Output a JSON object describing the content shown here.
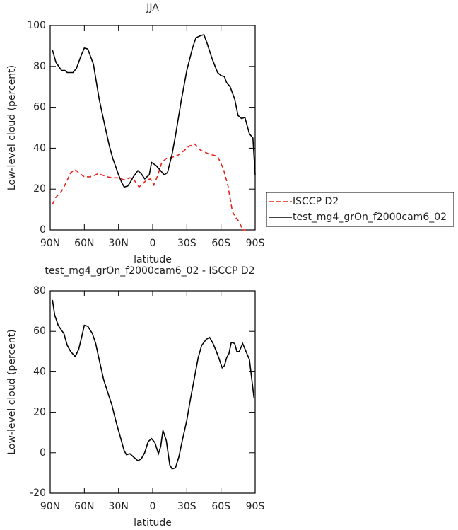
{
  "chart_data": [
    {
      "type": "line",
      "title": "JJA",
      "x_label": "latitude",
      "y_label": "Low-level cloud (percent)",
      "xlim": [
        90,
        -90
      ],
      "xticks": [
        {
          "value": 90,
          "label": "90N"
        },
        {
          "value": 60,
          "label": "60N"
        },
        {
          "value": 30,
          "label": "30N"
        },
        0,
        {
          "value": -30,
          "label": "30S"
        },
        {
          "value": -60,
          "label": "60S"
        },
        {
          "value": -90,
          "label": "90S"
        }
      ],
      "ylim": [
        0,
        100
      ],
      "yticks": [
        0,
        20,
        40,
        60,
        80,
        100
      ],
      "legend": "outside-right",
      "series": [
        {
          "name": "ISCCP D2",
          "color": "#e8201a",
          "line_style": "dashed",
          "x": [
            88,
            85,
            80,
            77,
            72,
            68,
            65,
            60,
            55,
            52,
            48,
            45,
            40,
            35,
            30,
            25,
            20,
            17,
            12,
            8,
            5,
            2,
            -1,
            -4,
            -8,
            -12,
            -17,
            -22,
            -27,
            -32,
            -37,
            -42,
            -46,
            -50,
            -54,
            -57,
            -62,
            -66,
            -70,
            -73,
            -76,
            -79,
            -82
          ],
          "values": [
            12.5,
            16,
            19,
            22,
            28,
            29.5,
            28,
            26,
            26,
            26.5,
            27.5,
            27,
            26,
            25.5,
            25.5,
            24.5,
            25.5,
            25,
            21,
            23,
            24.5,
            25,
            22,
            26,
            33,
            35,
            35.5,
            36.5,
            38.5,
            41,
            42,
            39,
            38,
            37,
            36.5,
            36,
            30,
            22,
            9,
            6,
            4,
            0,
            0
          ]
        },
        {
          "name": "test_mg4_grOn_f2000cam6_02",
          "color": "#000000",
          "line_style": "solid",
          "x": [
            88,
            85,
            80,
            77,
            75,
            70,
            67,
            63,
            60,
            57,
            52,
            47,
            42,
            38,
            35,
            30,
            27,
            25,
            22,
            20,
            17,
            13,
            10,
            7,
            3,
            1,
            -3,
            -7,
            -10,
            -13,
            -17,
            -20,
            -25,
            -30,
            -35,
            -38,
            -42,
            -45,
            -48,
            -52,
            -57,
            -60,
            -63,
            -65,
            -68,
            -72,
            -75,
            -78,
            -81,
            -85,
            -88,
            -90
          ],
          "values": [
            88,
            82,
            78,
            78,
            77,
            77,
            79,
            85,
            89,
            88.5,
            81,
            64,
            51,
            41,
            35,
            27,
            23,
            21,
            21.5,
            23,
            26,
            29,
            27.5,
            25,
            27,
            33,
            31.5,
            29,
            27,
            28,
            37,
            46,
            63,
            78,
            89,
            94,
            95,
            95.5,
            91,
            84,
            77,
            75.5,
            75,
            72,
            70,
            64,
            56,
            54.5,
            55,
            47,
            45,
            27
          ]
        }
      ]
    },
    {
      "type": "line",
      "title": "test_mg4_grOn_f2000cam6_02 - ISCCP D2",
      "x_label": "latitude",
      "y_label": "Low-level cloud (percent)",
      "xlim": [
        90,
        -90
      ],
      "xticks": [
        {
          "value": 90,
          "label": "90N"
        },
        {
          "value": 60,
          "label": "60N"
        },
        {
          "value": 30,
          "label": "30N"
        },
        0,
        {
          "value": -30,
          "label": "30S"
        },
        {
          "value": -60,
          "label": "60S"
        },
        {
          "value": -90,
          "label": "90S"
        }
      ],
      "ylim": [
        -20,
        80
      ],
      "yticks": [
        -20,
        0,
        20,
        40,
        60,
        80
      ],
      "color": "#000000",
      "x": [
        88,
        86,
        83,
        80,
        78,
        75,
        72,
        68,
        65,
        62,
        60,
        57,
        53,
        50,
        47,
        43,
        39,
        36,
        32,
        28,
        25,
        23,
        20,
        17,
        13,
        10,
        7,
        4,
        1,
        -2,
        -5,
        -7,
        -9,
        -12,
        -15,
        -17,
        -20,
        -23,
        -26,
        -30,
        -33,
        -37,
        -40,
        -43,
        -47,
        -50,
        -53,
        -56,
        -58,
        -61,
        -63,
        -65,
        -67,
        -69,
        -72,
        -74,
        -76,
        -79,
        -82,
        -85,
        -89
      ],
      "values": [
        75.5,
        68,
        63,
        60.5,
        59,
        53,
        50,
        47.5,
        51,
        58,
        63,
        62.5,
        59,
        54,
        46,
        36,
        29,
        24,
        15,
        7,
        1,
        -1,
        -0.5,
        -2,
        -4,
        -3,
        0,
        5.5,
        7,
        5,
        -0.5,
        3,
        11,
        6,
        -6,
        -8,
        -7.5,
        -2,
        6,
        16,
        26,
        38,
        47,
        53,
        56,
        57,
        54,
        50,
        47,
        42,
        43,
        47,
        49,
        54.5,
        54,
        50,
        50,
        54,
        50,
        46,
        27
      ]
    }
  ]
}
